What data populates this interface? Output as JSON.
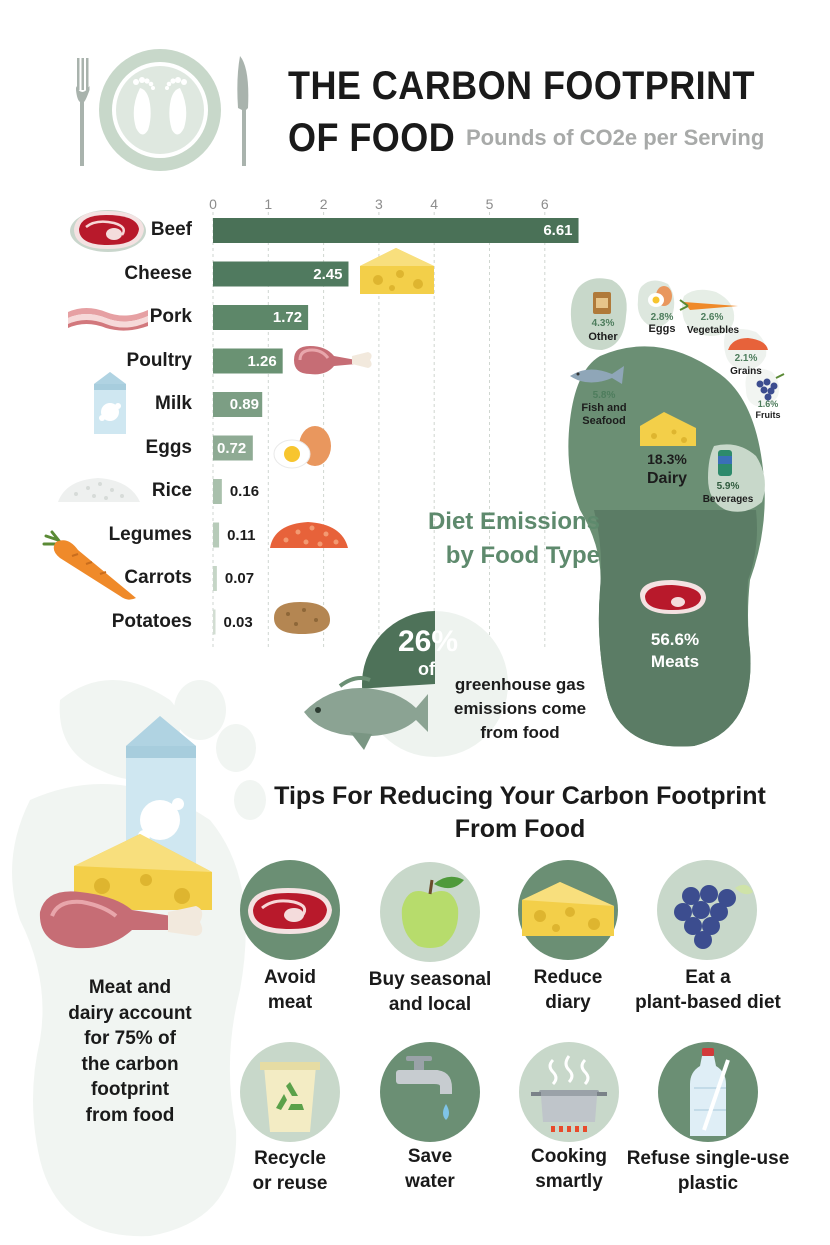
{
  "header": {
    "title_line1": "THE CARBON FOOTPRINT",
    "title_line2": "OF FOOD",
    "subtitle": "Pounds of CO2e per Serving"
  },
  "chart_data": [
    {
      "type": "bar",
      "orientation": "horizontal",
      "title": "THE CARBON FOOTPRINT OF FOOD",
      "subtitle": "Pounds of CO2e per Serving",
      "categories": [
        "Beef",
        "Cheese",
        "Pork",
        "Poultry",
        "Milk",
        "Eggs",
        "Rice",
        "Legumes",
        "Carrots",
        "Potatoes"
      ],
      "values": [
        6.61,
        2.45,
        1.72,
        1.26,
        0.89,
        0.72,
        0.16,
        0.11,
        0.07,
        0.03
      ],
      "value_labels": [
        "6.61",
        "2.45",
        "1.72",
        "1.26",
        "0.89",
        "0.72",
        "0.16",
        "0.11",
        "0.07",
        "0.03"
      ],
      "xticks": [
        0,
        1,
        2,
        3,
        4,
        5,
        6
      ],
      "xlim": [
        0,
        6.9
      ],
      "grid": "vertical dashed",
      "bar_colors": [
        "#4a7157",
        "#507a5f",
        "#5d8769",
        "#6a9273",
        "#7c9e84",
        "#8fab94",
        "#a9c0ac",
        "#b7cbb9",
        "#c5d5c6",
        "#d2ddd2"
      ]
    },
    {
      "type": "pie",
      "title": "Diet Emissions by Food Type",
      "labels": [
        "Meats",
        "Dairy",
        "Beverages",
        "Fish and Seafood",
        "Other",
        "Eggs",
        "Vegetables",
        "Grains",
        "Fruits"
      ],
      "values": [
        56.6,
        18.3,
        5.9,
        5.8,
        4.3,
        2.8,
        2.6,
        2.1,
        1.6
      ],
      "value_labels": [
        "56.6%",
        "18.3%",
        "5.9%",
        "5.8%",
        "4.3%",
        "2.8%",
        "2.6%",
        "2.1%",
        "1.6%"
      ]
    }
  ],
  "diet": {
    "title_line1": "Diet Emissions",
    "title_line2": "by Food Type",
    "meats": {
      "pct": "56.6%",
      "label": "Meats"
    },
    "dairy": {
      "pct": "18.3%",
      "label": "Dairy"
    },
    "beverages": {
      "pct": "5.9%",
      "label": "Beverages"
    },
    "fish": {
      "pct": "5.8%",
      "label1": "Fish and",
      "label2": "Seafood"
    },
    "other": {
      "pct": "4.3%",
      "label": "Other"
    },
    "eggs": {
      "pct": "2.8%",
      "label": "Eggs"
    },
    "vegetables": {
      "pct": "2.6%",
      "label": "Vegetables"
    },
    "grains": {
      "pct": "2.1%",
      "label": "Grains"
    },
    "fruits": {
      "pct": "1.6%",
      "label": "Fruits"
    }
  },
  "greenhouse": {
    "pct": "26%",
    "of": "of",
    "line1": "greenhouse gas",
    "line2": "emissions come",
    "line3": "from food",
    "fraction": 0.26
  },
  "left_note": {
    "line1": "Meat and",
    "line2": "dairy account",
    "line3": "for 75% of",
    "line4": "the carbon",
    "line5": "footprint",
    "line6": "from food"
  },
  "tips": {
    "title_line1": "Tips For Reducing Your Carbon Footprint",
    "title_line2": "From Food",
    "items": [
      {
        "line1": "Avoid",
        "line2": "meat",
        "icon": "steak-icon"
      },
      {
        "line1": "Buy seasonal",
        "line2": "and local",
        "icon": "apple-icon"
      },
      {
        "line1": "Reduce",
        "line2": "diary",
        "icon": "cheese-icon"
      },
      {
        "line1": "Eat a",
        "line2": "plant-based diet",
        "icon": "grapes-icon"
      },
      {
        "line1": "Recycle",
        "line2": "or reuse",
        "icon": "recycle-icon"
      },
      {
        "line1": "Save",
        "line2": "water",
        "icon": "faucet-icon"
      },
      {
        "line1": "Cooking",
        "line2": "smartly",
        "icon": "pot-icon"
      },
      {
        "line1": "Refuse single-use",
        "line2": "plastic",
        "icon": "bottle-icon"
      }
    ]
  },
  "colors": {
    "dark_green": "#4a7157",
    "mid_green": "#6b8f74",
    "light_green": "#c8d8ca",
    "pale": "#e9efea",
    "accent_text": "#5e8a6d",
    "gray_text": "#a8aaa9"
  }
}
